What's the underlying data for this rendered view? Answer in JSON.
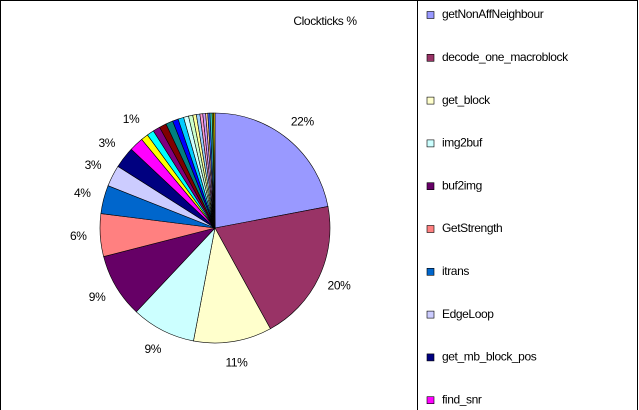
{
  "chart_data": {
    "type": "pie",
    "title": "Clockticks %",
    "categories": [
      "getNonAffNeighbour",
      "decode_one_macroblock",
      "get_block",
      "img2buf",
      "buf2img",
      "GetStrength",
      "itrans",
      "EdgeLoop",
      "get_mb_block_pos",
      "find_snr",
      null,
      null,
      null,
      null,
      null,
      null,
      null,
      null,
      null,
      null,
      null,
      null,
      null,
      null,
      null,
      null,
      null,
      null
    ],
    "values": [
      22,
      20,
      11,
      9,
      9,
      6,
      4,
      3,
      3,
      2,
      1,
      1,
      1,
      1,
      1,
      0.8,
      0.8,
      0.7,
      0.6,
      0.5,
      0.5,
      0.4,
      0.4,
      0.3,
      0.3,
      0.3,
      0.2,
      0.2
    ],
    "value_labels": [
      "22%",
      "20%",
      "11%",
      "9%",
      "9%",
      "6%",
      "4%",
      "3%",
      "3%",
      null,
      "1%",
      null,
      null,
      null,
      null,
      null,
      null,
      null,
      null,
      null,
      null,
      null,
      null,
      null,
      null,
      null,
      null,
      null
    ],
    "colors": [
      "#9999FF",
      "#993366",
      "#FFFFCC",
      "#CCFFFF",
      "#660066",
      "#FF8080",
      "#0066CC",
      "#CCCCFF",
      "#000080",
      "#FF00FF",
      "#FFFF00",
      "#00FFFF",
      "#800080",
      "#800000",
      "#008080",
      "#0000FF",
      "#00CCFF",
      "#CCFFFF",
      "#CCFFCC",
      "#FFFF99",
      "#99CCFF",
      "#FF99CC",
      "#CC99FF",
      "#FFCC99",
      "#3366FF",
      "#33CCCC",
      "#99CC00",
      "#FFCC00"
    ]
  }
}
